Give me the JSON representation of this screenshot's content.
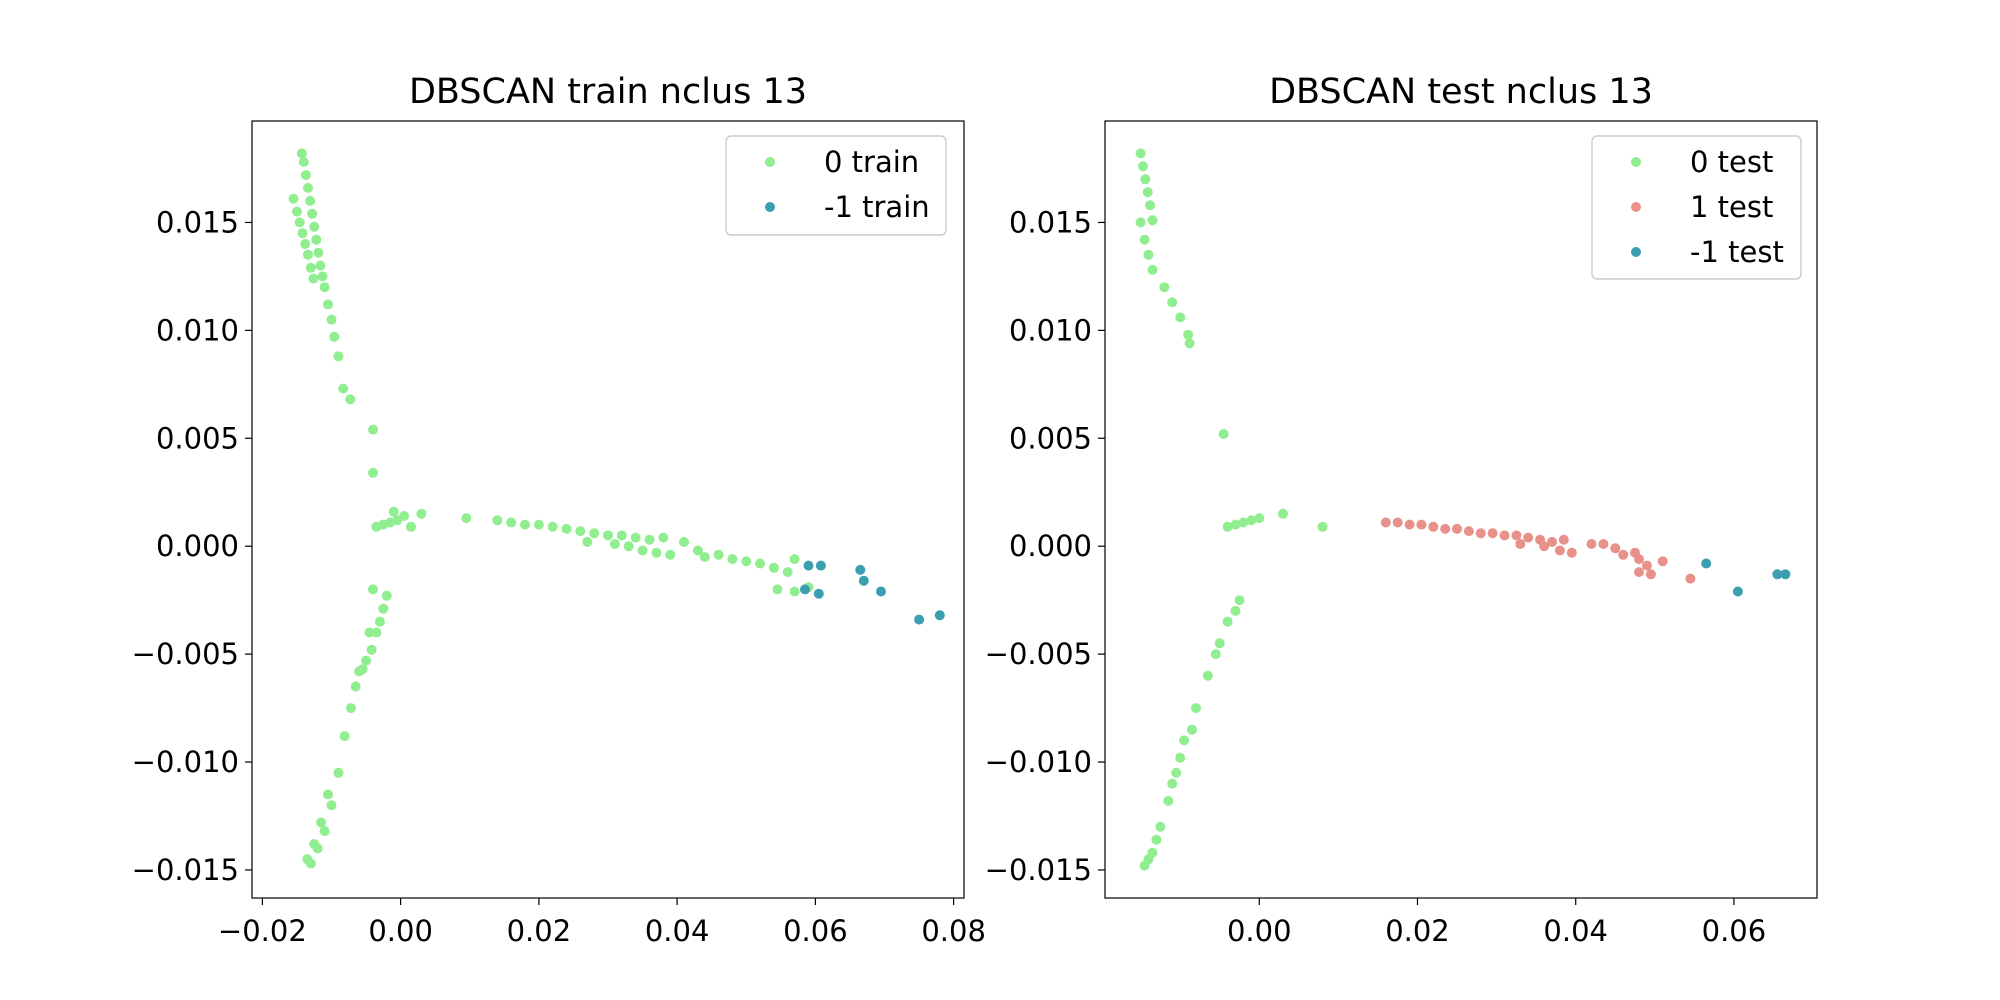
{
  "chart_data": [
    {
      "type": "scatter",
      "title": "DBSCAN train nclus 13",
      "xlim": [
        -0.0215,
        0.0815
      ],
      "ylim": [
        -0.0163,
        0.0197
      ],
      "xticks": [
        -0.02,
        0.0,
        0.02,
        0.04,
        0.06,
        0.08
      ],
      "xtick_labels": [
        "−0.02",
        "0.00",
        "0.02",
        "0.04",
        "0.06",
        "0.08"
      ],
      "yticks": [
        -0.015,
        -0.01,
        -0.005,
        0.0,
        0.005,
        0.01,
        0.015
      ],
      "ytick_labels": [
        "−0.015",
        "−0.010",
        "−0.005",
        "0.000",
        "0.005",
        "0.010",
        "0.015"
      ],
      "grid": false,
      "legend_position": "top-right",
      "series": [
        {
          "name": "0 train",
          "color": "#90ee90",
          "points": [
            [
              -0.0143,
              0.0182
            ],
            [
              -0.014,
              0.0178
            ],
            [
              -0.0137,
              0.0172
            ],
            [
              -0.0134,
              0.0166
            ],
            [
              -0.0131,
              0.016
            ],
            [
              -0.0128,
              0.0154
            ],
            [
              -0.0125,
              0.0148
            ],
            [
              -0.0122,
              0.0142
            ],
            [
              -0.0119,
              0.0136
            ],
            [
              -0.0116,
              0.013
            ],
            [
              -0.0113,
              0.0125
            ],
            [
              -0.011,
              0.012
            ],
            [
              -0.0155,
              0.0161
            ],
            [
              -0.015,
              0.0155
            ],
            [
              -0.0146,
              0.015
            ],
            [
              -0.0142,
              0.0145
            ],
            [
              -0.0138,
              0.014
            ],
            [
              -0.0134,
              0.0135
            ],
            [
              -0.013,
              0.0129
            ],
            [
              -0.0126,
              0.0124
            ],
            [
              -0.0105,
              0.0112
            ],
            [
              -0.01,
              0.0105
            ],
            [
              -0.0096,
              0.0097
            ],
            [
              -0.009,
              0.0088
            ],
            [
              -0.0083,
              0.0073
            ],
            [
              -0.0073,
              0.0068
            ],
            [
              -0.004,
              0.0054
            ],
            [
              -0.004,
              0.0034
            ],
            [
              -0.0035,
              0.0009
            ],
            [
              -0.0025,
              0.001
            ],
            [
              -0.0015,
              0.0011
            ],
            [
              -0.0005,
              0.0012
            ],
            [
              0.0005,
              0.0014
            ],
            [
              -0.001,
              0.0016
            ],
            [
              0.0015,
              0.0009
            ],
            [
              0.003,
              0.0015
            ],
            [
              0.0095,
              0.0013
            ],
            [
              0.014,
              0.0012
            ],
            [
              0.016,
              0.0011
            ],
            [
              0.018,
              0.001
            ],
            [
              0.02,
              0.001
            ],
            [
              0.022,
              0.0009
            ],
            [
              0.024,
              0.0008
            ],
            [
              0.026,
              0.0007
            ],
            [
              0.028,
              0.0006
            ],
            [
              0.03,
              0.0005
            ],
            [
              0.032,
              0.0005
            ],
            [
              0.034,
              0.0004
            ],
            [
              0.036,
              0.0003
            ],
            [
              0.038,
              0.0004
            ],
            [
              0.027,
              0.0002
            ],
            [
              0.031,
              0.0001
            ],
            [
              0.033,
              0.0
            ],
            [
              0.035,
              -0.0002
            ],
            [
              0.037,
              -0.0003
            ],
            [
              0.039,
              -0.0004
            ],
            [
              0.041,
              0.0002
            ],
            [
              0.043,
              -0.0002
            ],
            [
              0.044,
              -0.0005
            ],
            [
              0.046,
              -0.0004
            ],
            [
              0.048,
              -0.0006
            ],
            [
              0.05,
              -0.0007
            ],
            [
              0.052,
              -0.0008
            ],
            [
              0.054,
              -0.001
            ],
            [
              0.056,
              -0.0012
            ],
            [
              0.057,
              -0.0006
            ],
            [
              0.0545,
              -0.002
            ],
            [
              0.057,
              -0.0021
            ],
            [
              0.059,
              -0.0019
            ],
            [
              -0.004,
              -0.002
            ],
            [
              -0.0045,
              -0.004
            ],
            [
              -0.006,
              -0.0058
            ],
            [
              -0.0065,
              -0.0065
            ],
            [
              -0.0072,
              -0.0075
            ],
            [
              -0.0081,
              -0.0088
            ],
            [
              -0.009,
              -0.0105
            ],
            [
              -0.01,
              -0.012
            ],
            [
              -0.011,
              -0.0132
            ],
            [
              -0.012,
              -0.014
            ],
            [
              -0.013,
              -0.0147
            ],
            [
              -0.0135,
              -0.0145
            ],
            [
              -0.0125,
              -0.0138
            ],
            [
              -0.0115,
              -0.0128
            ],
            [
              -0.0105,
              -0.0115
            ],
            [
              -0.002,
              -0.0023
            ],
            [
              -0.0025,
              -0.0029
            ],
            [
              -0.003,
              -0.0035
            ],
            [
              -0.0035,
              -0.004
            ],
            [
              -0.0042,
              -0.0048
            ],
            [
              -0.005,
              -0.0053
            ],
            [
              -0.0055,
              -0.0057
            ]
          ]
        },
        {
          "name": "-1 train",
          "color": "#3a9fb0",
          "points": [
            [
              0.059,
              -0.0009
            ],
            [
              0.0608,
              -0.0009
            ],
            [
              0.0665,
              -0.0011
            ],
            [
              0.067,
              -0.0016
            ],
            [
              0.0695,
              -0.0021
            ],
            [
              0.0585,
              -0.002
            ],
            [
              0.0605,
              -0.0022
            ],
            [
              0.075,
              -0.0034
            ],
            [
              0.078,
              -0.0032
            ]
          ]
        }
      ]
    },
    {
      "type": "scatter",
      "title": "DBSCAN test nclus 13",
      "xlim": [
        -0.0195,
        0.0705
      ],
      "ylim": [
        -0.0163,
        0.0197
      ],
      "xticks": [
        0.0,
        0.02,
        0.04,
        0.06
      ],
      "xtick_labels": [
        "0.00",
        "0.02",
        "0.04",
        "0.06"
      ],
      "yticks": [
        -0.015,
        -0.01,
        -0.005,
        0.0,
        0.005,
        0.01,
        0.015
      ],
      "ytick_labels": [
        "−0.015",
        "−0.010",
        "−0.005",
        "0.000",
        "0.005",
        "0.010",
        "0.015"
      ],
      "grid": false,
      "legend_position": "top-right",
      "series": [
        {
          "name": "0 test",
          "color": "#90ee90",
          "points": [
            [
              -0.015,
              0.0182
            ],
            [
              -0.0147,
              0.0176
            ],
            [
              -0.0144,
              0.017
            ],
            [
              -0.0141,
              0.0164
            ],
            [
              -0.0138,
              0.0158
            ],
            [
              -0.0135,
              0.0151
            ],
            [
              -0.015,
              0.015
            ],
            [
              -0.0145,
              0.0142
            ],
            [
              -0.014,
              0.0135
            ],
            [
              -0.0135,
              0.0128
            ],
            [
              -0.012,
              0.012
            ],
            [
              -0.011,
              0.0113
            ],
            [
              -0.01,
              0.0106
            ],
            [
              -0.009,
              0.0098
            ],
            [
              -0.0088,
              0.0094
            ],
            [
              -0.0045,
              0.0052
            ],
            [
              -0.004,
              0.0009
            ],
            [
              -0.003,
              0.001
            ],
            [
              -0.002,
              0.0011
            ],
            [
              -0.001,
              0.0012
            ],
            [
              0.0,
              0.0013
            ],
            [
              0.003,
              0.0015
            ],
            [
              0.008,
              0.0009
            ],
            [
              -0.0025,
              -0.0025
            ],
            [
              -0.003,
              -0.003
            ],
            [
              -0.004,
              -0.0035
            ],
            [
              -0.005,
              -0.0045
            ],
            [
              -0.0055,
              -0.005
            ],
            [
              -0.0065,
              -0.006
            ],
            [
              -0.008,
              -0.0075
            ],
            [
              -0.0095,
              -0.009
            ],
            [
              -0.0105,
              -0.0105
            ],
            [
              -0.0115,
              -0.0118
            ],
            [
              -0.0125,
              -0.013
            ],
            [
              -0.0135,
              -0.0142
            ],
            [
              -0.0145,
              -0.0148
            ],
            [
              -0.014,
              -0.0145
            ],
            [
              -0.013,
              -0.0136
            ],
            [
              -0.011,
              -0.011
            ],
            [
              -0.01,
              -0.0098
            ],
            [
              -0.0085,
              -0.0085
            ]
          ]
        },
        {
          "name": "1 test",
          "color": "#e8918a",
          "points": [
            [
              0.016,
              0.0011
            ],
            [
              0.0175,
              0.0011
            ],
            [
              0.019,
              0.001
            ],
            [
              0.0205,
              0.001
            ],
            [
              0.022,
              0.0009
            ],
            [
              0.0235,
              0.0008
            ],
            [
              0.025,
              0.0008
            ],
            [
              0.0265,
              0.0007
            ],
            [
              0.028,
              0.0006
            ],
            [
              0.0295,
              0.0006
            ],
            [
              0.031,
              0.0005
            ],
            [
              0.0325,
              0.0005
            ],
            [
              0.034,
              0.0004
            ],
            [
              0.0355,
              0.0003
            ],
            [
              0.037,
              0.0002
            ],
            [
              0.0385,
              0.0003
            ],
            [
              0.033,
              0.0001
            ],
            [
              0.036,
              0.0
            ],
            [
              0.038,
              -0.0002
            ],
            [
              0.0395,
              -0.0003
            ],
            [
              0.042,
              0.0001
            ],
            [
              0.0435,
              0.0001
            ],
            [
              0.045,
              -0.0001
            ],
            [
              0.046,
              -0.0004
            ],
            [
              0.0475,
              -0.0003
            ],
            [
              0.048,
              -0.0006
            ],
            [
              0.049,
              -0.0009
            ],
            [
              0.051,
              -0.0007
            ],
            [
              0.048,
              -0.0012
            ],
            [
              0.0495,
              -0.0013
            ],
            [
              0.0545,
              -0.0015
            ]
          ]
        },
        {
          "name": "-1 test",
          "color": "#3a9fb0",
          "points": [
            [
              0.0565,
              -0.0008
            ],
            [
              0.0605,
              -0.0021
            ],
            [
              0.0655,
              -0.0013
            ],
            [
              0.0665,
              -0.0013
            ]
          ]
        }
      ]
    }
  ]
}
